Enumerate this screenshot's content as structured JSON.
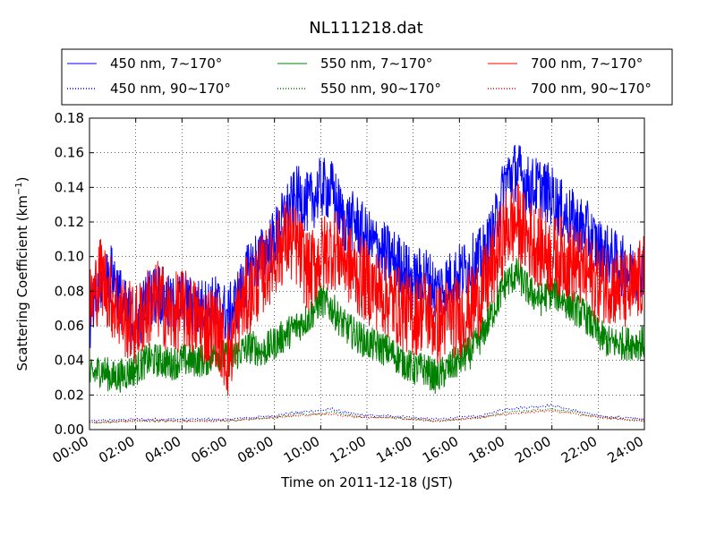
{
  "chart_data": {
    "type": "line",
    "title": "NL111218.dat",
    "xlabel": "Time on 2011-12-18 (JST)",
    "ylabel": "Scattering Coefficient (km",
    "ylabel_sup": "−1",
    "ylabel_close": ")",
    "xlim": [
      0,
      24
    ],
    "ylim": [
      0,
      0.18
    ],
    "grid": true,
    "legend_position": "top",
    "x_ticks": [
      "00:00",
      "02:00",
      "04:00",
      "06:00",
      "08:00",
      "10:00",
      "12:00",
      "14:00",
      "16:00",
      "18:00",
      "20:00",
      "22:00",
      "24:00"
    ],
    "y_ticks": [
      "0.00",
      "0.02",
      "0.04",
      "0.06",
      "0.08",
      "0.10",
      "0.12",
      "0.14",
      "0.16",
      "0.18"
    ],
    "x_unit": "hours since 00:00",
    "series": [
      {
        "name": "450 nm, 7∼170°",
        "color": "#0000ff",
        "style": "solid",
        "x": [
          0,
          0.5,
          1,
          1.5,
          2,
          2.5,
          3,
          3.5,
          4,
          4.5,
          5,
          5.5,
          6,
          6.5,
          7,
          7.5,
          8,
          8.5,
          9,
          9.5,
          10,
          10.5,
          11,
          11.5,
          12,
          12.5,
          13,
          13.5,
          14,
          14.5,
          15,
          15.5,
          16,
          16.5,
          17,
          17.5,
          18,
          18.5,
          19,
          19.5,
          20,
          20.5,
          21,
          21.5,
          22,
          22.5,
          23,
          23.5,
          24
        ],
        "y": [
          0.06,
          0.085,
          0.09,
          0.07,
          0.06,
          0.075,
          0.08,
          0.07,
          0.075,
          0.07,
          0.07,
          0.072,
          0.065,
          0.078,
          0.095,
          0.1,
          0.11,
          0.125,
          0.135,
          0.13,
          0.14,
          0.138,
          0.12,
          0.12,
          0.11,
          0.105,
          0.1,
          0.095,
          0.085,
          0.09,
          0.08,
          0.085,
          0.09,
          0.095,
          0.1,
          0.115,
          0.145,
          0.15,
          0.14,
          0.14,
          0.135,
          0.125,
          0.12,
          0.115,
          0.105,
          0.1,
          0.095,
          0.09,
          0.095
        ],
        "noise": 0.018
      },
      {
        "name": "550 nm, 7∼170°",
        "color": "#008000",
        "style": "solid",
        "x": [
          0,
          0.5,
          1,
          1.5,
          2,
          2.5,
          3,
          3.5,
          4,
          4.5,
          5,
          5.5,
          6,
          6.5,
          7,
          7.5,
          8,
          8.5,
          9,
          9.5,
          10,
          10.5,
          11,
          11.5,
          12,
          12.5,
          13,
          13.5,
          14,
          14.5,
          15,
          15.5,
          16,
          16.5,
          17,
          17.5,
          18,
          18.5,
          19,
          19.5,
          20,
          20.5,
          21,
          21.5,
          22,
          22.5,
          23,
          23.5,
          24
        ],
        "y": [
          0.03,
          0.035,
          0.03,
          0.032,
          0.035,
          0.04,
          0.04,
          0.038,
          0.04,
          0.04,
          0.04,
          0.045,
          0.04,
          0.045,
          0.048,
          0.045,
          0.05,
          0.055,
          0.06,
          0.065,
          0.075,
          0.07,
          0.06,
          0.055,
          0.05,
          0.048,
          0.045,
          0.04,
          0.035,
          0.035,
          0.03,
          0.035,
          0.04,
          0.045,
          0.055,
          0.07,
          0.085,
          0.09,
          0.08,
          0.075,
          0.08,
          0.075,
          0.07,
          0.065,
          0.055,
          0.05,
          0.05,
          0.05,
          0.05
        ],
        "noise": 0.01
      },
      {
        "name": "700 nm, 7∼170°",
        "color": "#ff0000",
        "style": "solid",
        "x": [
          0,
          0.5,
          1,
          1.5,
          2,
          2.5,
          3,
          3.5,
          4,
          4.5,
          5,
          5.5,
          6,
          6.5,
          7,
          7.5,
          8,
          8.5,
          9,
          9.5,
          10,
          10.5,
          11,
          11.5,
          12,
          12.5,
          13,
          13.5,
          14,
          14.5,
          15,
          15.5,
          16,
          16.5,
          17,
          17.5,
          18,
          18.5,
          19,
          19.5,
          20,
          20.5,
          21,
          21.5,
          22,
          22.5,
          23,
          23.5,
          24
        ],
        "y": [
          0.07,
          0.09,
          0.075,
          0.065,
          0.06,
          0.07,
          0.075,
          0.065,
          0.07,
          0.065,
          0.06,
          0.06,
          0.04,
          0.07,
          0.08,
          0.09,
          0.1,
          0.11,
          0.105,
          0.09,
          0.1,
          0.105,
          0.1,
          0.09,
          0.085,
          0.08,
          0.075,
          0.07,
          0.065,
          0.07,
          0.06,
          0.065,
          0.065,
          0.07,
          0.08,
          0.095,
          0.115,
          0.12,
          0.11,
          0.105,
          0.1,
          0.1,
          0.095,
          0.09,
          0.085,
          0.085,
          0.08,
          0.08,
          0.09
        ],
        "noise": 0.024
      },
      {
        "name": "450 nm, 90∼170°",
        "color": "#0000ff",
        "style": "dotted",
        "x": [
          0,
          2,
          4,
          6,
          7,
          8,
          9,
          10,
          10.5,
          11,
          12,
          13,
          14,
          15,
          16,
          17,
          18,
          19,
          20,
          21,
          22,
          23,
          24
        ],
        "y": [
          0.005,
          0.006,
          0.006,
          0.006,
          0.007,
          0.008,
          0.01,
          0.011,
          0.012,
          0.01,
          0.008,
          0.008,
          0.007,
          0.006,
          0.007,
          0.008,
          0.012,
          0.013,
          0.014,
          0.011,
          0.008,
          0.007,
          0.006
        ],
        "noise": 0.0006
      },
      {
        "name": "550 nm, 90∼170°",
        "color": "#008000",
        "style": "dotted",
        "x": [
          0,
          2,
          4,
          6,
          7,
          8,
          9,
          10,
          10.5,
          11,
          12,
          13,
          14,
          15,
          16,
          17,
          18,
          19,
          20,
          21,
          22,
          23,
          24
        ],
        "y": [
          0.004,
          0.005,
          0.005,
          0.005,
          0.006,
          0.007,
          0.009,
          0.009,
          0.01,
          0.009,
          0.007,
          0.007,
          0.006,
          0.005,
          0.006,
          0.007,
          0.01,
          0.011,
          0.012,
          0.01,
          0.007,
          0.006,
          0.005
        ],
        "noise": 0.0005
      },
      {
        "name": "700 nm, 90∼170°",
        "color": "#ff0000",
        "style": "dotted",
        "x": [
          0,
          2,
          4,
          6,
          7,
          8,
          9,
          10,
          10.5,
          11,
          12,
          13,
          14,
          15,
          16,
          17,
          18,
          19,
          20,
          21,
          22,
          23,
          24
        ],
        "y": [
          0.004,
          0.005,
          0.005,
          0.005,
          0.006,
          0.007,
          0.008,
          0.009,
          0.009,
          0.008,
          0.007,
          0.007,
          0.006,
          0.005,
          0.006,
          0.007,
          0.009,
          0.01,
          0.011,
          0.009,
          0.007,
          0.006,
          0.005
        ],
        "noise": 0.0005
      }
    ]
  }
}
